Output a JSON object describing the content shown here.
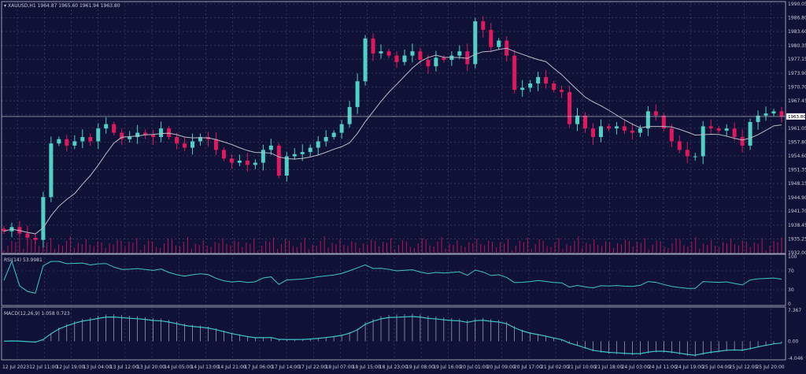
{
  "window": {
    "symbol_info": "XAUUSD,H1  1964.87 1965.60 1961.94 1963.80"
  },
  "colors": {
    "background": "#0f1236",
    "bull": "#4fd1c5",
    "bear": "#e0185e",
    "ma": "#b9bbc6",
    "grid": "#4a4d6e",
    "indicator": "#3cc6c8",
    "axis": "#9a9cb0"
  },
  "chart_data": [
    {
      "type": "candlestick",
      "title": "XAUUSD,H1",
      "ylim": [
        1932.0,
        1990.05
      ],
      "yticks": [
        "1990.05",
        "1986.80",
        "1983.60",
        "1980.35",
        "1977.15",
        "1973.90",
        "1970.70",
        "1967.45",
        "1964.25",
        "1961.05",
        "1957.80",
        "1954.60",
        "1951.35",
        "1948.15",
        "1944.90",
        "1941.70",
        "1938.45",
        "1935.25",
        "1932.00"
      ],
      "current_price": "1963.80",
      "grid": true,
      "closes": [
        1937,
        1938,
        1936.5,
        1935.5,
        1935,
        1945,
        1957.5,
        1958.5,
        1957,
        1958,
        1959,
        1958,
        1961,
        1962,
        1960,
        1958.5,
        1959,
        1960,
        1959.5,
        1959,
        1961,
        1959,
        1957.5,
        1956.5,
        1958,
        1959,
        1958.5,
        1956,
        1954,
        1953,
        1953.5,
        1952.5,
        1953,
        1956,
        1957,
        1950,
        1954.5,
        1955,
        1955.5,
        1956.5,
        1958,
        1959,
        1960,
        1962,
        1966,
        1972,
        1982,
        1978.5,
        1979,
        1978,
        1976.5,
        1978,
        1979,
        1977,
        1975.5,
        1977.5,
        1977,
        1978,
        1979,
        1976,
        1986,
        1984,
        1980,
        1981.5,
        1978,
        1970,
        1970.5,
        1971.5,
        1973,
        1971.5,
        1970,
        1969.5,
        1962,
        1964,
        1961,
        1959,
        1961.5,
        1961,
        1961.5,
        1960.5,
        1960,
        1961,
        1965,
        1964,
        1961,
        1958,
        1956,
        1954.5,
        1954.5,
        1961.5,
        1961,
        1960.5,
        1961,
        1959,
        1957,
        1962.5,
        1964,
        1964.5,
        1965,
        1963.8
      ],
      "volume_axis_label": "100"
    },
    {
      "type": "line",
      "title": "RSI(14) 53.9981",
      "ylim": [
        0,
        100
      ],
      "yticks": [
        "100",
        "70",
        "30",
        "0"
      ]
    },
    {
      "type": "bar+line",
      "title": "MACD(12,26,9) 1.058 0.723",
      "ylim": [
        -4.046,
        7.367
      ],
      "yticks": [
        "7.367",
        "0.00",
        "-4.046"
      ]
    }
  ],
  "time_axis": [
    "12 Jul 2023",
    "12 Jul 11:00",
    "12 Jul 19:00",
    "13 Jul 04:00",
    "13 Jul 12:00",
    "13 Jul 20:00",
    "14 Jul 05:00",
    "14 Jul 13:00",
    "14 Jul 21:00",
    "17 Jul 06:00",
    "17 Jul 14:00",
    "17 Jul 22:00",
    "18 Jul 07:00",
    "18 Jul 15:00",
    "18 Jul 23:00",
    "19 Jul 08:00",
    "19 Jul 16:00",
    "20 Jul 01:00",
    "20 Jul 09:00",
    "20 Jul 17:00",
    "21 Jul 02:00",
    "21 Jul 10:00",
    "21 Jul 18:00",
    "24 Jul 03:00",
    "24 Jul 11:00",
    "24 Jul 19:00",
    "25 Jul 04:00",
    "25 Jul 12:00",
    "25 Jul 20:00"
  ]
}
